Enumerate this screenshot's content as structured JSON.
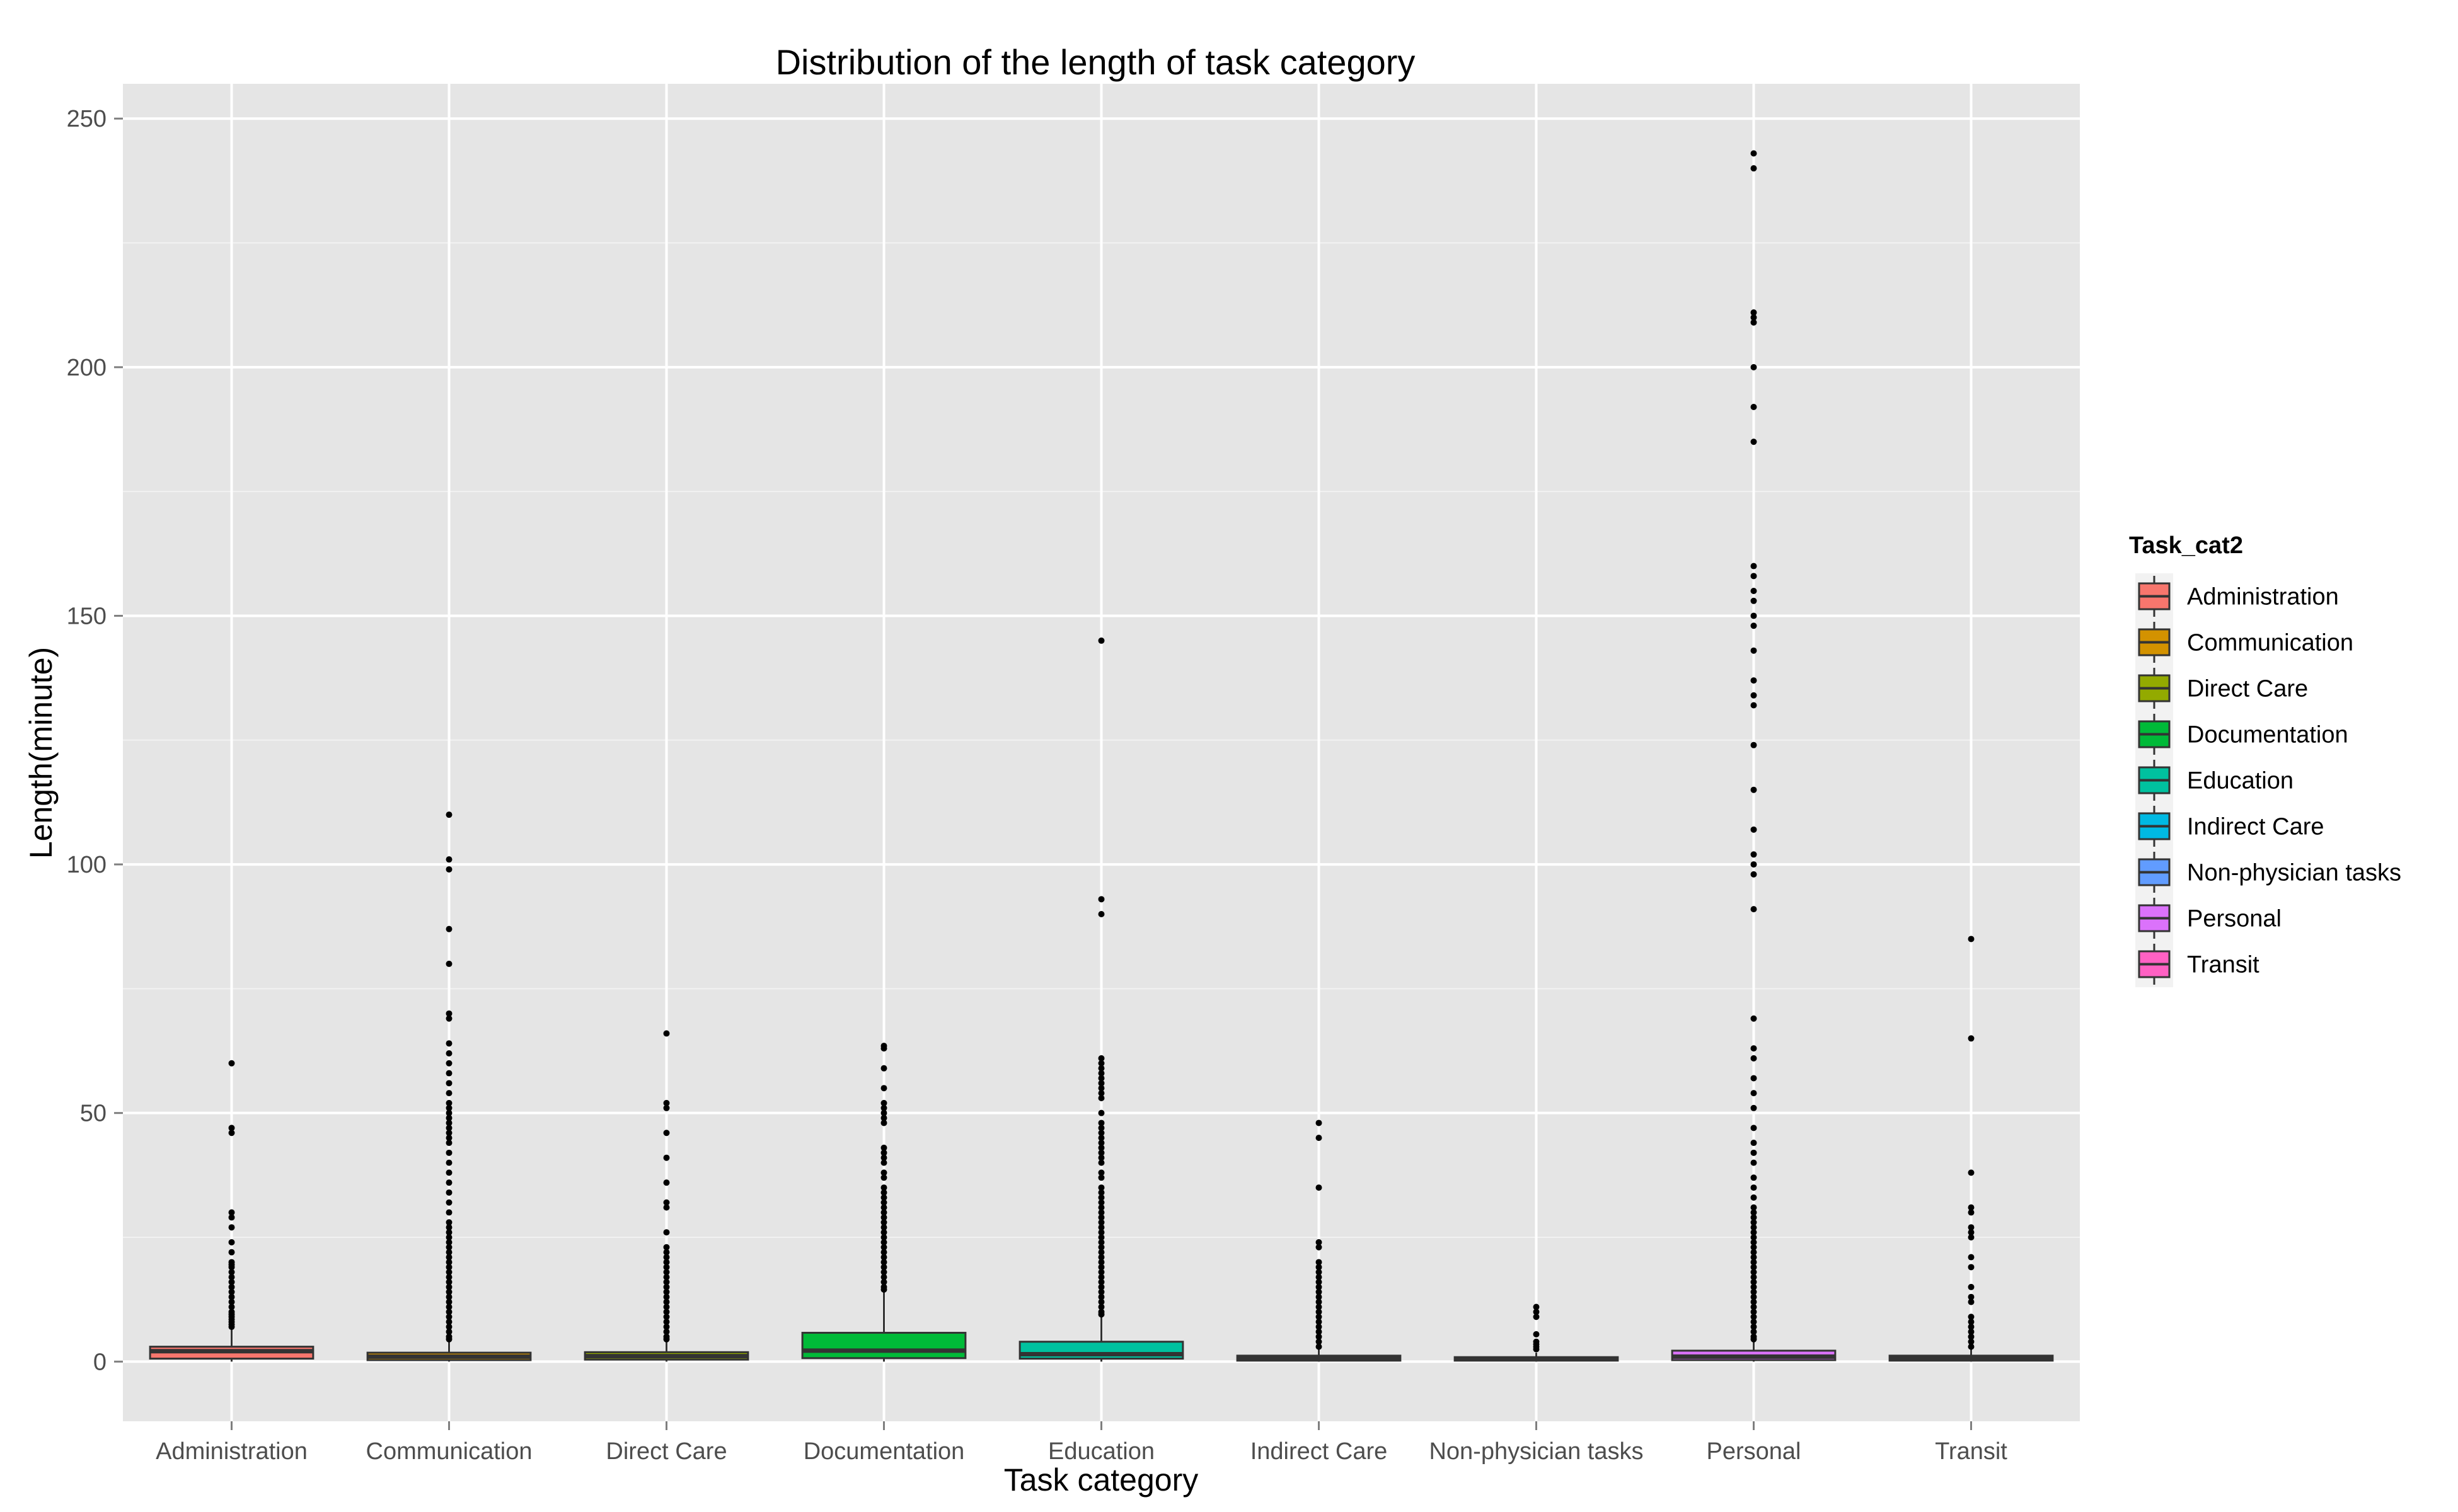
{
  "chart_data": {
    "type": "boxplot",
    "title": "Distribution of the length of task category",
    "xlabel": "Task category",
    "ylabel": "Length(minute)",
    "ylim": [
      -12,
      257
    ],
    "yticks": [
      0,
      50,
      100,
      150,
      200,
      250
    ],
    "grid": true,
    "legend": {
      "title": "Task_cat2",
      "position": "right"
    },
    "categories": [
      "Administration",
      "Communication",
      "Direct Care",
      "Documentation",
      "Education",
      "Indirect Care",
      "Non-physician tasks",
      "Personal",
      "Transit"
    ],
    "colors": [
      "#F8766D",
      "#D39200",
      "#93AA00",
      "#00BA38",
      "#00C19F",
      "#00B9E3",
      "#619CFF",
      "#DB72FB",
      "#FF61C3"
    ],
    "boxes": [
      {
        "category": "Administration",
        "q1": 0.6,
        "median": 2.1,
        "q3": 3.0,
        "whisker_low": 0.0,
        "whisker_high": 6.5,
        "outliers": [
          60,
          47,
          46,
          30,
          29,
          27,
          24,
          22,
          20,
          19.5,
          19,
          18,
          17,
          16,
          15,
          14,
          13,
          12,
          11,
          10,
          9.5,
          9,
          8.5,
          8,
          7.5,
          7
        ]
      },
      {
        "category": "Communication",
        "q1": 0.3,
        "median": 1.0,
        "q3": 1.8,
        "whisker_low": 0.0,
        "whisker_high": 4.0,
        "outliers": [
          110,
          101,
          99,
          87,
          80,
          70,
          69,
          64,
          62,
          60,
          58,
          56,
          54,
          52,
          51,
          50,
          49,
          48,
          47,
          46,
          45,
          44,
          42,
          40,
          38,
          36,
          34,
          32,
          30,
          28,
          27,
          26,
          25,
          24,
          23,
          22,
          21,
          20,
          19,
          18,
          17,
          16,
          15,
          14,
          13,
          12,
          11,
          10,
          9,
          8,
          7,
          6,
          5,
          4.5
        ]
      },
      {
        "category": "Direct Care",
        "q1": 0.4,
        "median": 1.1,
        "q3": 1.9,
        "whisker_low": 0.0,
        "whisker_high": 4.0,
        "outliers": [
          66,
          52,
          51,
          46,
          41,
          36,
          32,
          31,
          26,
          23,
          22,
          21,
          20,
          19,
          18,
          17,
          16,
          15,
          14,
          13,
          12,
          11,
          10,
          9,
          8,
          7,
          6,
          5,
          4.5
        ]
      },
      {
        "category": "Documentation",
        "q1": 0.7,
        "median": 2.2,
        "q3": 5.8,
        "whisker_low": 0.0,
        "whisker_high": 14.0,
        "outliers": [
          63.5,
          63,
          59,
          55,
          52,
          51,
          50,
          49,
          48,
          43,
          42,
          41,
          40,
          38,
          37,
          35,
          34,
          33,
          32,
          31,
          30,
          29,
          28,
          27,
          26,
          25,
          24,
          23,
          22,
          21,
          20,
          19,
          18,
          17,
          16,
          15,
          14.5
        ]
      },
      {
        "category": "Education",
        "q1": 0.6,
        "median": 1.5,
        "q3": 4.0,
        "whisker_low": 0.0,
        "whisker_high": 9.0,
        "outliers": [
          145,
          93,
          90,
          61,
          60,
          59,
          58,
          57,
          56,
          55,
          54,
          53,
          50,
          48,
          47,
          46,
          45,
          44,
          43,
          42,
          41,
          40,
          38,
          37,
          35,
          34,
          33,
          32,
          31,
          30,
          29,
          28,
          27,
          26,
          25,
          24,
          23,
          22,
          21,
          20,
          19,
          18,
          17,
          16,
          15,
          14,
          13,
          12,
          11,
          10,
          9.5
        ]
      },
      {
        "category": "Indirect Care",
        "q1": 0.2,
        "median": 0.6,
        "q3": 1.2,
        "whisker_low": 0.0,
        "whisker_high": 2.5,
        "outliers": [
          48,
          45,
          35,
          24,
          23,
          20,
          19,
          18,
          17,
          16,
          15,
          14,
          13,
          12,
          11,
          10,
          9,
          8,
          7,
          6,
          5,
          4,
          3
        ]
      },
      {
        "category": "Non-physician tasks",
        "q1": 0.2,
        "median": 0.5,
        "q3": 0.9,
        "whisker_low": 0.0,
        "whisker_high": 1.8,
        "outliers": [
          11,
          10,
          9,
          5.5,
          4,
          3.5,
          3,
          2.5
        ]
      },
      {
        "category": "Personal",
        "q1": 0.3,
        "median": 1.0,
        "q3": 2.2,
        "whisker_low": 0.0,
        "whisker_high": 4.0,
        "outliers": [
          243,
          240,
          211,
          210,
          209,
          200,
          192,
          185,
          160,
          158,
          155,
          153,
          150,
          148,
          143,
          137,
          134,
          132,
          124,
          115,
          107,
          102,
          100,
          98,
          91,
          69,
          63,
          61,
          57,
          54,
          51,
          47,
          44,
          42,
          40,
          37,
          35,
          33,
          31,
          30,
          29,
          28,
          27,
          26,
          25,
          24,
          23,
          22,
          21,
          20,
          19,
          18,
          17,
          16,
          15,
          14,
          13,
          12,
          11,
          10,
          9,
          8,
          7,
          6,
          5,
          4.5
        ]
      },
      {
        "category": "Transit",
        "q1": 0.2,
        "median": 0.6,
        "q3": 1.2,
        "whisker_low": 0.0,
        "whisker_high": 2.5,
        "outliers": [
          85,
          65,
          38,
          31,
          30,
          27,
          26,
          25,
          21,
          19,
          15,
          13,
          12,
          9,
          8,
          7,
          6,
          5,
          4,
          3
        ]
      }
    ]
  }
}
